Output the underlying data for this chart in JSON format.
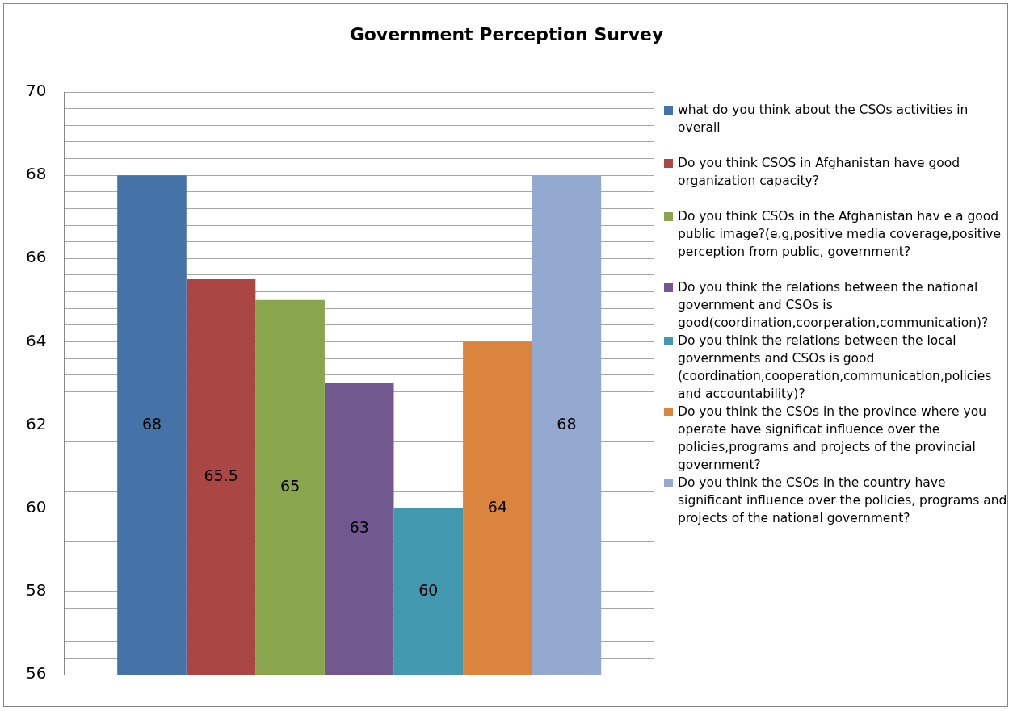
{
  "chart_data": {
    "type": "bar",
    "title": "Government Perception Survey",
    "categories": [
      null
    ],
    "series": [
      {
        "name": "what do you think about the CSOs activities in overall",
        "color": "#4572a7",
        "values": [
          68
        ]
      },
      {
        "name": "Do you think CSOS in Afghanistan have good organization capacity?",
        "color": "#aa4643",
        "values": [
          65.5
        ]
      },
      {
        "name": "Do you think CSOs in the Afghanistan hav e a good public image?(e.g,positive media coverage,positive perception from public, government?",
        "color": "#89a54e",
        "values": [
          65
        ]
      },
      {
        "name": "Do you think the relations between the national government and CSOs is good(coordination,coorperation,communication)?",
        "color": "#71588f",
        "values": [
          63
        ]
      },
      {
        "name": "Do you think the relations between the local governments and CSOs is good (coordination,cooperation,communication,policies and accountability)?",
        "color": "#4198af",
        "values": [
          60
        ]
      },
      {
        "name": "Do you think the CSOs in the province where you operate have significat influence over the policies,programs and projects of the provincial government?",
        "color": "#db843d",
        "values": [
          64
        ]
      },
      {
        "name": "Do you think the CSOs in the country have significant influence over the policies, programs and projects of the national government?",
        "color": "#93a9cf",
        "values": [
          68
        ]
      }
    ],
    "ylim": [
      56,
      70
    ],
    "yticks": [
      56,
      {
        "value": 56.4,
        "label": null
      },
      {
        "value": 56.8,
        "label": null
      },
      {
        "value": 57.2,
        "label": null
      },
      {
        "value": 57.6,
        "label": null
      },
      58,
      {
        "value": 58.4,
        "label": null
      },
      {
        "value": 58.8,
        "label": null
      },
      {
        "value": 59.2,
        "label": null
      },
      {
        "value": 59.6,
        "label": null
      },
      60,
      {
        "value": 60.4,
        "label": null
      },
      {
        "value": 60.8,
        "label": null
      },
      {
        "value": 61.2,
        "label": null
      },
      {
        "value": 61.6,
        "label": null
      },
      62,
      {
        "value": 62.4,
        "label": null
      },
      {
        "value": 62.8,
        "label": null
      },
      {
        "value": 63.2,
        "label": null
      },
      {
        "value": 63.6,
        "label": null
      },
      64,
      {
        "value": 64.4,
        "label": null
      },
      {
        "value": 64.8,
        "label": null
      },
      {
        "value": 65.2,
        "label": null
      },
      {
        "value": 65.6,
        "label": null
      },
      66,
      {
        "value": 66.4,
        "label": null
      },
      {
        "value": 66.8,
        "label": null
      },
      {
        "value": 67.2,
        "label": null
      },
      {
        "value": 67.6,
        "label": null
      },
      68,
      {
        "value": 68.4,
        "label": null
      },
      {
        "value": 68.8,
        "label": null
      },
      {
        "value": 69.2,
        "label": null
      },
      {
        "value": 69.6,
        "label": null
      },
      70
    ],
    "grid": "y",
    "legend": "right",
    "data_labels": true
  }
}
